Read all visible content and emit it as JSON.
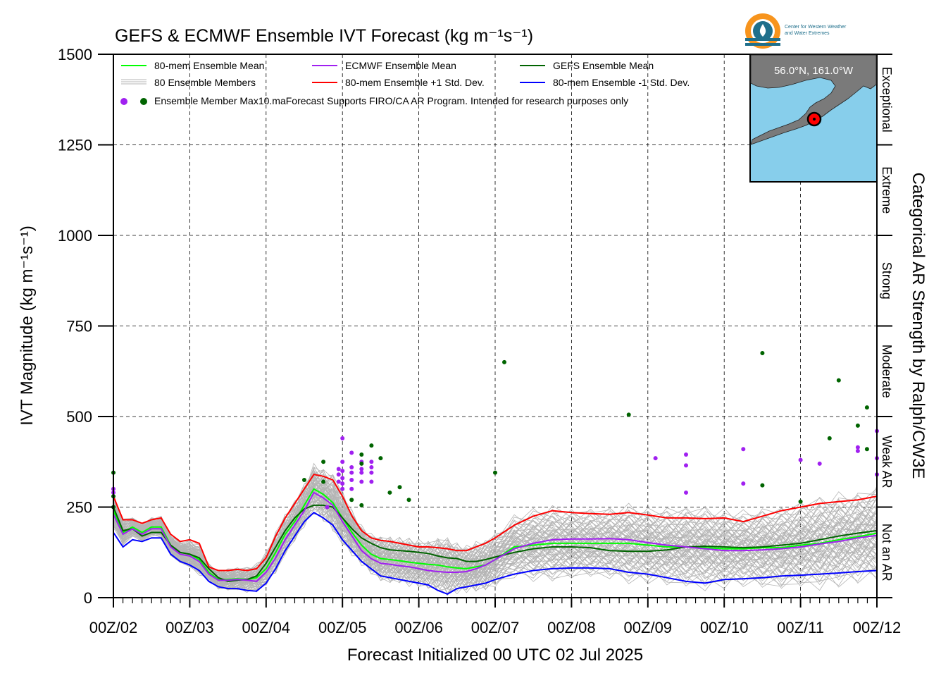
{
  "chart_data": {
    "type": "line",
    "title": "GEFS & ECMWF Ensemble IVT Forecast (kg m⁻¹s⁻¹)",
    "xlabel": "Forecast Initialized 00 UTC 02 Jul 2025",
    "ylabel": "IVT Magnitude (kg m⁻¹s⁻¹)",
    "right_label": "Categorical AR Strength by Ralph/CW3E",
    "x_ticks": [
      "00Z/02",
      "00Z/03",
      "00Z/04",
      "00Z/05",
      "00Z/06",
      "00Z/07",
      "00Z/08",
      "00Z/09",
      "00Z/10",
      "00Z/11",
      "00Z/12"
    ],
    "xlim": [
      0,
      10
    ],
    "ylim": [
      0,
      1500
    ],
    "y_ticks": [
      0,
      250,
      500,
      750,
      1000,
      1250,
      1500
    ],
    "grid": true,
    "legend_position": "top-left",
    "legend": {
      "mean80": "80-mem Ensemble Mean",
      "ecmwf_mean": "ECMWF Ensemble Mean",
      "gefs_mean": "GEFS Ensemble Mean",
      "members": "80 Ensemble Members",
      "plus_std": "80-mem Ensemble +1 Std. Dev.",
      "minus_std": "80-mem Ensemble -1 Std. Dev.",
      "max_marker": "Ensemble Member Max",
      "note": "10.maForecast Supports FIRO/CA AR Program. Intended for research purposes only"
    },
    "categories": [
      {
        "label": "Not an AR",
        "range": [
          0,
          250
        ]
      },
      {
        "label": "Weak AR",
        "range": [
          250,
          500
        ]
      },
      {
        "label": "Moderate",
        "range": [
          500,
          750
        ]
      },
      {
        "label": "Strong",
        "range": [
          750,
          1000
        ]
      },
      {
        "label": "Extreme",
        "range": [
          1000,
          1250
        ]
      },
      {
        "label": "Exceptional",
        "range": [
          1250,
          1500
        ]
      }
    ],
    "inset_map": {
      "label": "56.0°N, 161.0°W"
    },
    "logo_text": [
      "Center for Western Weather",
      "and Water Extremes"
    ],
    "colors": {
      "mean80": "#00ff00",
      "ecmwf_mean": "#a020f0",
      "gefs_mean": "#006400",
      "plus_std": "#ff0000",
      "minus_std": "#0000ff",
      "members": "#b4b4b4",
      "map_ocean": "#87ceeb",
      "map_land": "#7a7a7a"
    },
    "x": [
      0,
      0.125,
      0.25,
      0.375,
      0.5,
      0.625,
      0.75,
      0.875,
      1,
      1.125,
      1.25,
      1.375,
      1.5,
      1.625,
      1.75,
      1.875,
      2,
      2.125,
      2.25,
      2.375,
      2.5,
      2.625,
      2.75,
      2.875,
      3,
      3.125,
      3.25,
      3.375,
      3.5,
      3.625,
      3.75,
      3.875,
      4,
      4.125,
      4.25,
      4.375,
      4.5,
      4.625,
      4.75,
      4.875,
      5,
      5.25,
      5.5,
      5.75,
      6,
      6.25,
      6.5,
      6.75,
      7,
      7.25,
      7.5,
      7.75,
      8,
      8.25,
      8.5,
      8.75,
      9,
      9.25,
      9.5,
      9.75,
      10
    ],
    "series": [
      {
        "name": "80-mem Ensemble Mean",
        "key": "mean80",
        "values": [
          240,
          180,
          195,
          180,
          195,
          195,
          145,
          125,
          120,
          105,
          70,
          50,
          50,
          52,
          50,
          55,
          80,
          125,
          175,
          210,
          255,
          300,
          285,
          262,
          220,
          180,
          145,
          120,
          108,
          105,
          102,
          98,
          95,
          92,
          90,
          85,
          82,
          80,
          85,
          90,
          105,
          140,
          145,
          150,
          150,
          150,
          150,
          150,
          145,
          140,
          140,
          138,
          135,
          135,
          138,
          138,
          145,
          150,
          160,
          168,
          178
        ]
      },
      {
        "name": "ECMWF Ensemble Mean",
        "key": "ecmwf_mean",
        "values": [
          230,
          175,
          190,
          175,
          190,
          190,
          140,
          120,
          115,
          100,
          65,
          48,
          48,
          50,
          48,
          45,
          70,
          110,
          160,
          200,
          240,
          290,
          275,
          255,
          210,
          170,
          130,
          108,
          95,
          92,
          88,
          85,
          80,
          75,
          72,
          70,
          70,
          72,
          80,
          90,
          105,
          135,
          150,
          160,
          162,
          162,
          163,
          160,
          152,
          145,
          140,
          135,
          130,
          130,
          132,
          135,
          140,
          148,
          155,
          165,
          172
        ]
      },
      {
        "name": "GEFS Ensemble Mean",
        "key": "gefs_mean",
        "values": [
          250,
          185,
          190,
          170,
          180,
          180,
          145,
          125,
          120,
          110,
          80,
          55,
          45,
          48,
          50,
          60,
          95,
          140,
          185,
          220,
          245,
          255,
          255,
          250,
          220,
          190,
          165,
          150,
          138,
          132,
          130,
          128,
          125,
          122,
          115,
          110,
          108,
          100,
          100,
          105,
          112,
          125,
          135,
          140,
          140,
          138,
          130,
          128,
          128,
          132,
          140,
          142,
          140,
          138,
          140,
          145,
          150,
          160,
          170,
          178,
          185
        ]
      },
      {
        "name": "80-mem Ensemble +1 Std. Dev.",
        "key": "plus_std",
        "values": [
          280,
          215,
          215,
          205,
          215,
          220,
          175,
          155,
          160,
          150,
          85,
          75,
          75,
          78,
          75,
          80,
          110,
          170,
          220,
          260,
          300,
          340,
          335,
          325,
          280,
          225,
          185,
          165,
          158,
          155,
          150,
          145,
          140,
          140,
          138,
          135,
          130,
          130,
          140,
          150,
          165,
          200,
          225,
          240,
          235,
          232,
          230,
          235,
          228,
          220,
          220,
          218,
          220,
          210,
          225,
          240,
          250,
          260,
          265,
          270,
          280
        ]
      },
      {
        "name": "80-mem Ensemble -1 Std. Dev.",
        "key": "minus_std",
        "values": [
          180,
          140,
          160,
          155,
          165,
          165,
          120,
          100,
          90,
          75,
          45,
          30,
          25,
          25,
          20,
          18,
          40,
          80,
          130,
          170,
          210,
          235,
          220,
          200,
          160,
          130,
          100,
          80,
          60,
          55,
          50,
          45,
          40,
          35,
          20,
          10,
          25,
          30,
          35,
          40,
          50,
          65,
          75,
          80,
          82,
          82,
          80,
          70,
          65,
          55,
          45,
          40,
          50,
          52,
          55,
          60,
          62,
          65,
          68,
          72,
          75
        ]
      }
    ],
    "max_points": {
      "ecmwf": [
        [
          0,
          300
        ],
        [
          0,
          290
        ],
        [
          2.8,
          250
        ],
        [
          2.95,
          320
        ],
        [
          2.95,
          340
        ],
        [
          2.95,
          355
        ],
        [
          3,
          300
        ],
        [
          3,
          315
        ],
        [
          3,
          330
        ],
        [
          3,
          350
        ],
        [
          3,
          375
        ],
        [
          3,
          440
        ],
        [
          3.12,
          300
        ],
        [
          3.12,
          325
        ],
        [
          3.12,
          345
        ],
        [
          3.12,
          360
        ],
        [
          3.12,
          400
        ],
        [
          3.25,
          320
        ],
        [
          3.25,
          345
        ],
        [
          3.25,
          355
        ],
        [
          3.25,
          375
        ],
        [
          3.38,
          320
        ],
        [
          3.38,
          345
        ],
        [
          3.38,
          360
        ],
        [
          3.38,
          375
        ],
        [
          7.1,
          385
        ],
        [
          7.5,
          290
        ],
        [
          7.5,
          365
        ],
        [
          7.5,
          395
        ],
        [
          8.25,
          315
        ],
        [
          8.25,
          410
        ],
        [
          9,
          380
        ],
        [
          9.25,
          370
        ],
        [
          9.75,
          405
        ],
        [
          9.75,
          415
        ],
        [
          10,
          340
        ],
        [
          10,
          385
        ],
        [
          10,
          460
        ]
      ],
      "gefs": [
        [
          0,
          345
        ],
        [
          0,
          280
        ],
        [
          0,
          250
        ],
        [
          2.5,
          325
        ],
        [
          2.75,
          320
        ],
        [
          2.75,
          375
        ],
        [
          3.12,
          270
        ],
        [
          3.25,
          255
        ],
        [
          3.25,
          370
        ],
        [
          3.25,
          395
        ],
        [
          3.38,
          420
        ],
        [
          3.5,
          385
        ],
        [
          3.62,
          290
        ],
        [
          3.75,
          305
        ],
        [
          3.87,
          270
        ],
        [
          5,
          345
        ],
        [
          5.12,
          650
        ],
        [
          6.75,
          505
        ],
        [
          8.5,
          310
        ],
        [
          8.5,
          675
        ],
        [
          9,
          265
        ],
        [
          9.38,
          440
        ],
        [
          9.5,
          600
        ],
        [
          9.75,
          475
        ],
        [
          9.87,
          410
        ],
        [
          9.87,
          525
        ]
      ]
    }
  }
}
